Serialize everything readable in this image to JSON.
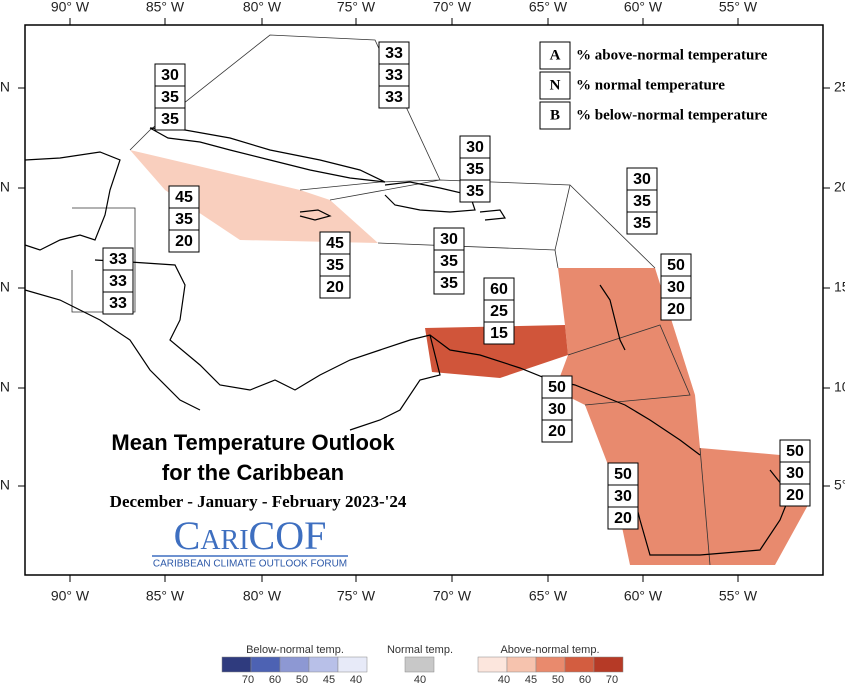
{
  "axes": {
    "top_labels": [
      "90° W",
      "85° W",
      "80° W",
      "75° W",
      "70° W",
      "65° W",
      "60° W",
      "55° W"
    ],
    "bottom_labels": [
      "90° W",
      "85° W",
      "80° W",
      "75° W",
      "70° W",
      "65° W",
      "60° W",
      "55° W"
    ],
    "left_labels": [
      "N",
      "N",
      "N",
      "N",
      "N"
    ],
    "right_labels": [
      "25",
      "20",
      "15",
      "10",
      "5°"
    ]
  },
  "legend": {
    "rows": [
      {
        "key": "A",
        "label": "% above-normal temperature"
      },
      {
        "key": "N",
        "label": "% normal temperature"
      },
      {
        "key": "B",
        "label": "% below-normal temperature"
      }
    ]
  },
  "regions": [
    {
      "above": 30,
      "normal": 35,
      "below": 35
    },
    {
      "above": 33,
      "normal": 33,
      "below": 33
    },
    {
      "above": 30,
      "normal": 35,
      "below": 35
    },
    {
      "above": 30,
      "normal": 35,
      "below": 35
    },
    {
      "above": 45,
      "normal": 35,
      "below": 20
    },
    {
      "above": 33,
      "normal": 33,
      "below": 33
    },
    {
      "above": 45,
      "normal": 35,
      "below": 20
    },
    {
      "above": 30,
      "normal": 35,
      "below": 35
    },
    {
      "above": 60,
      "normal": 25,
      "below": 15
    },
    {
      "above": 50,
      "normal": 30,
      "below": 20
    },
    {
      "above": 50,
      "normal": 30,
      "below": 20
    },
    {
      "above": 50,
      "normal": 30,
      "below": 20
    },
    {
      "above": 50,
      "normal": 30,
      "below": 20
    }
  ],
  "title": {
    "line1": "Mean Temperature Outlook",
    "line2": "for the Caribbean",
    "period": "December - January - February 2023-'24"
  },
  "logo": {
    "name": "CariCOF",
    "tagline": "CARIBBEAN CLIMATE OUTLOOK FORUM"
  },
  "color_scale": {
    "below": {
      "label": "Below-normal temp.",
      "ticks": [
        70,
        60,
        50,
        45,
        40
      ]
    },
    "normal": {
      "label": "Normal temp.",
      "ticks": [
        40
      ]
    },
    "above": {
      "label": "Above-normal temp.",
      "ticks": [
        40,
        45,
        50,
        60,
        70
      ]
    }
  }
}
